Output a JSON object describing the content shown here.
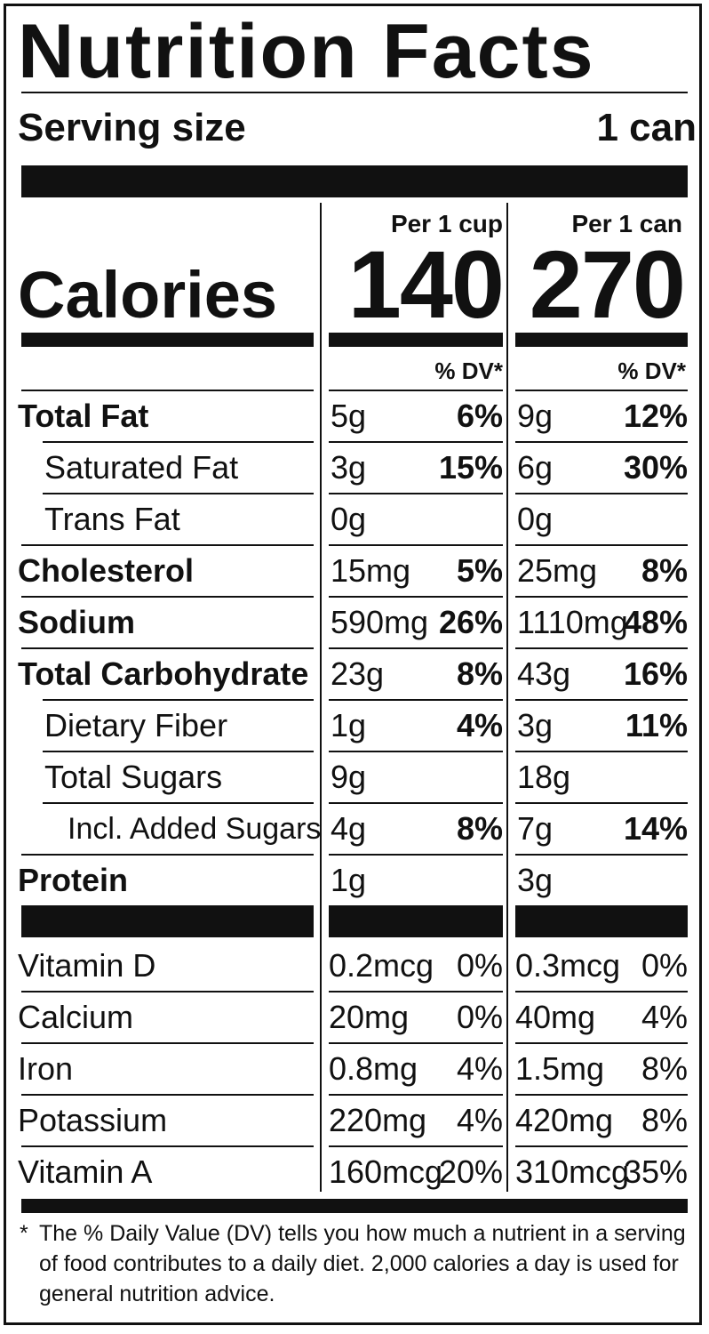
{
  "title": "Nutrition Facts",
  "serving": {
    "label": "Serving size",
    "value": "1 can"
  },
  "calories": {
    "label": "Calories",
    "col1_header": "Per 1 cup",
    "col2_header": "Per 1 can",
    "col1_value": "140",
    "col2_value": "270"
  },
  "dv_header": "% DV*",
  "nutrients": [
    {
      "name": "Total Fat",
      "bold": true,
      "indent": 0,
      "cup_amount": "5g",
      "cup_dv": "6%",
      "can_amount": "9g",
      "can_dv": "12%"
    },
    {
      "name": "Saturated Fat",
      "bold": false,
      "indent": 1,
      "cup_amount": "3g",
      "cup_dv": "15%",
      "can_amount": "6g",
      "can_dv": "30%"
    },
    {
      "name": "Trans Fat",
      "bold": false,
      "indent": 1,
      "cup_amount": "0g",
      "cup_dv": "",
      "can_amount": "0g",
      "can_dv": ""
    },
    {
      "name": "Cholesterol",
      "bold": true,
      "indent": 0,
      "cup_amount": "15mg",
      "cup_dv": "5%",
      "can_amount": "25mg",
      "can_dv": "8%"
    },
    {
      "name": "Sodium",
      "bold": true,
      "indent": 0,
      "cup_amount": "590mg",
      "cup_dv": "26%",
      "can_amount": "1110mg",
      "can_dv": "48%"
    },
    {
      "name": "Total Carbohydrate",
      "bold": true,
      "indent": 0,
      "cup_amount": "23g",
      "cup_dv": "8%",
      "can_amount": "43g",
      "can_dv": "16%"
    },
    {
      "name": "Dietary Fiber",
      "bold": false,
      "indent": 1,
      "cup_amount": "1g",
      "cup_dv": "4%",
      "can_amount": "3g",
      "can_dv": "11%"
    },
    {
      "name": "Total Sugars",
      "bold": false,
      "indent": 1,
      "cup_amount": "9g",
      "cup_dv": "",
      "can_amount": "18g",
      "can_dv": ""
    },
    {
      "name": "Incl. Added Sugars",
      "bold": false,
      "indent": 2,
      "cup_amount": "4g",
      "cup_dv": "8%",
      "can_amount": "7g",
      "can_dv": "14%"
    },
    {
      "name": "Protein",
      "bold": true,
      "indent": 0,
      "cup_amount": "1g",
      "cup_dv": "",
      "can_amount": "3g",
      "can_dv": ""
    }
  ],
  "vitamins": [
    {
      "name": "Vitamin D",
      "cup_amount": "0.2mcg",
      "cup_dv": "0%",
      "can_amount": "0.3mcg",
      "can_dv": "0%"
    },
    {
      "name": "Calcium",
      "cup_amount": "20mg",
      "cup_dv": "0%",
      "can_amount": "40mg",
      "can_dv": "4%"
    },
    {
      "name": "Iron",
      "cup_amount": "0.8mg",
      "cup_dv": "4%",
      "can_amount": "1.5mg",
      "can_dv": "8%"
    },
    {
      "name": "Potassium",
      "cup_amount": "220mg",
      "cup_dv": "4%",
      "can_amount": "420mg",
      "can_dv": "8%"
    },
    {
      "name": "Vitamin A",
      "cup_amount": "160mcg",
      "cup_dv": "20%",
      "can_amount": "310mcg",
      "can_dv": "35%"
    }
  ],
  "footnote": {
    "star": "*",
    "text": "The % Daily Value (DV) tells you how much a nutrient in a serving of food contributes to a daily diet. 2,000 calories a day is used for general nutrition advice."
  }
}
